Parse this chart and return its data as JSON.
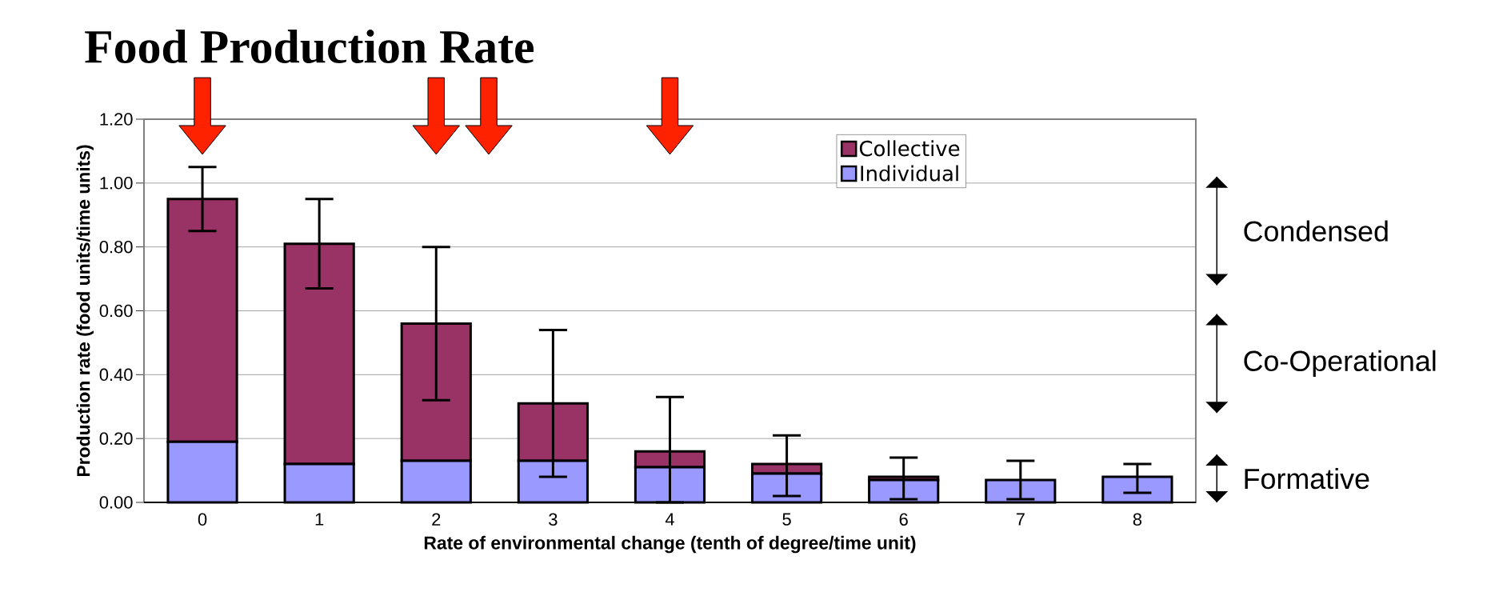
{
  "chart_data": {
    "type": "bar",
    "title": "Food Production Rate",
    "xlabel": "Rate of environmental change (tenth of degree/time unit)",
    "ylabel": "Production rate (food units/time units)",
    "categories": [
      "0",
      "1",
      "2",
      "3",
      "4",
      "5",
      "6",
      "7",
      "8"
    ],
    "stacked": true,
    "series": [
      {
        "name": "Individual",
        "color": "#9999ff",
        "values": [
          0.19,
          0.12,
          0.13,
          0.13,
          0.11,
          0.09,
          0.07,
          0.07,
          0.08
        ]
      },
      {
        "name": "Collective",
        "color": "#993366",
        "values": [
          0.76,
          0.69,
          0.43,
          0.18,
          0.05,
          0.03,
          0.01,
          0,
          0
        ],
        "errors": [
          [
            0.85,
            1.05
          ],
          [
            0.67,
            0.95
          ],
          [
            0.32,
            0.8
          ],
          [
            0.08,
            0.54
          ],
          [
            0.0,
            0.33
          ],
          [
            0.02,
            0.21
          ],
          [
            0.01,
            0.14
          ],
          [
            0.01,
            0.13
          ],
          [
            0.03,
            0.12
          ]
        ]
      }
    ],
    "ylim": [
      0,
      1.2
    ],
    "yticks": [
      {
        "value": 0,
        "label": "0.00"
      },
      {
        "value": 0.2,
        "label": "0.20"
      },
      {
        "value": 0.4,
        "label": "0.40"
      },
      {
        "value": 0.6,
        "label": "0.60"
      },
      {
        "value": 0.8,
        "label": "0.80"
      },
      {
        "value": 1.0,
        "label": "1.00"
      },
      {
        "value": 1.2,
        "label": "1.20"
      }
    ],
    "grid": "y",
    "legend": "top",
    "annotations": [
      "Condensed",
      "Co-Operational",
      "Formative"
    ]
  }
}
